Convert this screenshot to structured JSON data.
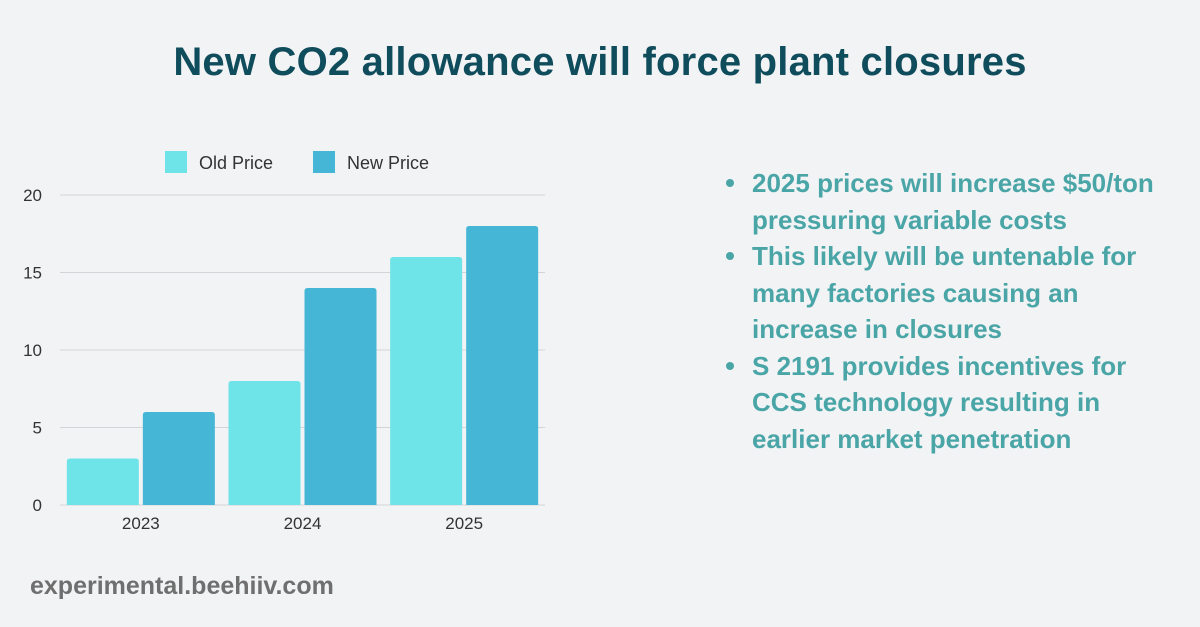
{
  "title": "New CO2 allowance will force plant closures",
  "chart_data": {
    "type": "bar",
    "categories": [
      "2023",
      "2024",
      "2025"
    ],
    "series": [
      {
        "name": "Old Price",
        "values": [
          3,
          8,
          16
        ],
        "color": "#6ee4e8"
      },
      {
        "name": "New Price",
        "values": [
          6,
          14,
          18
        ],
        "color": "#45b6d6"
      }
    ],
    "yticks": [
      "0",
      "5",
      "10",
      "15",
      "20"
    ],
    "ylim": [
      0,
      20
    ],
    "legend": "top",
    "grid": true
  },
  "bullets": [
    "2025 prices will increase $50/ton pressuring variable costs",
    "This likely will be untenable for many factories causing an increase in closures",
    "S 2191 provides incentives for CCS technology resulting in earlier market penetration"
  ],
  "footer": "experimental.beehiiv.com"
}
